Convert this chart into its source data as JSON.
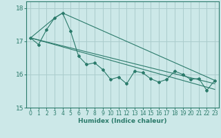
{
  "xlabel": "Humidex (Indice chaleur)",
  "xlim": [
    -0.5,
    23.5
  ],
  "ylim": [
    15,
    18.2
  ],
  "yticks": [
    15,
    16,
    17,
    18
  ],
  "xticks": [
    0,
    1,
    2,
    3,
    4,
    5,
    6,
    7,
    8,
    9,
    10,
    11,
    12,
    13,
    14,
    15,
    16,
    17,
    18,
    19,
    20,
    21,
    22,
    23
  ],
  "background_color": "#cce8e8",
  "grid_color": "#aacccc",
  "line_color": "#2a7a6a",
  "zigzag": {
    "x": [
      0,
      1,
      2,
      3,
      4,
      5,
      6,
      7,
      8,
      9,
      10,
      11,
      12,
      13,
      14,
      15,
      16,
      17,
      18,
      19,
      20,
      21,
      22,
      23
    ],
    "y": [
      17.1,
      16.9,
      17.35,
      17.7,
      17.85,
      17.3,
      16.55,
      16.3,
      16.35,
      16.15,
      15.85,
      15.92,
      15.72,
      16.1,
      16.05,
      15.87,
      15.77,
      15.85,
      16.1,
      16.0,
      15.85,
      15.88,
      15.52,
      15.82
    ]
  },
  "envelope_upper": {
    "x": [
      0,
      3,
      4,
      23
    ],
    "y": [
      17.1,
      17.7,
      17.85,
      15.82
    ]
  },
  "diagonal1": {
    "x": [
      0,
      23
    ],
    "y": [
      17.1,
      15.72
    ]
  },
  "diagonal2": {
    "x": [
      0,
      23
    ],
    "y": [
      17.1,
      15.55
    ]
  },
  "figsize": [
    3.2,
    2.0
  ],
  "dpi": 100
}
